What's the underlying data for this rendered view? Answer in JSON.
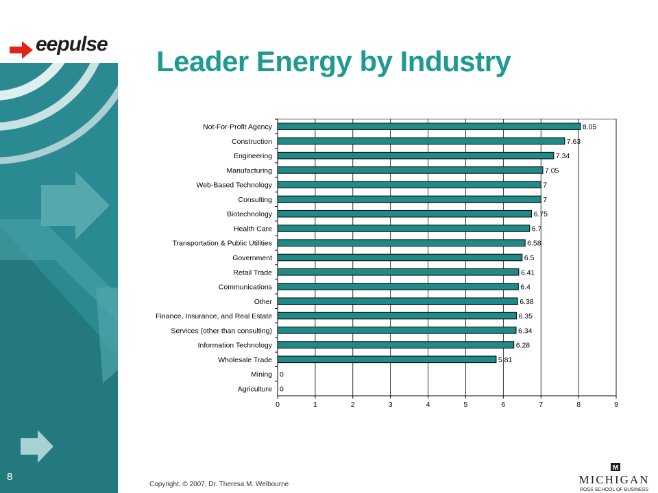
{
  "slide": {
    "title": "Leader Energy by Industry",
    "page_number": "8",
    "copyright": "Copyright, © 2007, Dr. Theresa M. Welbourne",
    "logo_text": "eepulse",
    "michigan_name": "MICHIGAN",
    "michigan_sub": "ROSS SCHOOL OF BUSINESS",
    "michigan_mark": "M"
  },
  "colors": {
    "title": "#1f9a93",
    "sidebar": "#2b8a91",
    "bar": "#1f8a87",
    "logo_arrow": "#e2231a"
  },
  "chart_data": {
    "type": "bar",
    "orientation": "horizontal",
    "categories": [
      "Not-For-Profit Agency",
      "Construction",
      "Engineering",
      "Manufacturing",
      "Web-Based Technology",
      "Consulting",
      "Biotechnology",
      "Health Care",
      "Transportation & Public Utilities",
      "Government",
      "Retail Trade",
      "Communications",
      "Other",
      "Finance, Insurance, and Real Estate",
      "Services (other than consulting)",
      "Information Technology",
      "Wholesale Trade",
      "Mining",
      "Agriculture"
    ],
    "values": [
      8.05,
      7.63,
      7.34,
      7.05,
      7,
      7,
      6.75,
      6.7,
      6.58,
      6.5,
      6.41,
      6.4,
      6.38,
      6.35,
      6.34,
      6.28,
      5.81,
      0,
      0
    ],
    "value_labels": [
      "8.05",
      "7.63",
      "7.34",
      "7.05",
      "7",
      "7",
      "6.75",
      "6.7",
      "6.58",
      "6.5",
      "6.41",
      "6.4",
      "6.38",
      "6.35",
      "6.34",
      "6.28",
      "5.81",
      "0",
      "0"
    ],
    "xlim": [
      0,
      9
    ],
    "xticks": [
      "0",
      "1",
      "2",
      "3",
      "4",
      "5",
      "6",
      "7",
      "8",
      "9"
    ],
    "grid": true
  }
}
